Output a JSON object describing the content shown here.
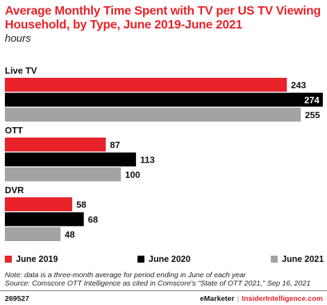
{
  "title": "Average Monthly Time Spent with TV per US TV Viewing Household, by Type, June 2019-June 2021",
  "subtitle": "hours",
  "chart_data": {
    "type": "bar",
    "orientation": "horizontal",
    "categories": [
      "Live TV",
      "OTT",
      "DVR"
    ],
    "series": [
      {
        "name": "June 2019",
        "color": "#e8232a",
        "values": [
          243,
          87,
          58
        ]
      },
      {
        "name": "June 2020",
        "color": "#000000",
        "values": [
          274,
          113,
          68
        ]
      },
      {
        "name": "June 2021",
        "color": "#a3a3a3",
        "values": [
          255,
          100,
          48
        ]
      }
    ],
    "xlim": [
      0,
      274
    ],
    "grid": false,
    "legend": "bottom"
  },
  "note": "Note: data is a three-month average for period ending in June of each year",
  "source": "Source: Comscore OTT Intelligence as cited in Comscore's \"State of OTT 2021,\" Sep 16, 2021",
  "footer": {
    "id": "269527",
    "brand": "eMarketer",
    "separator": "|",
    "brand2": "InsiderIntelligence.com"
  }
}
